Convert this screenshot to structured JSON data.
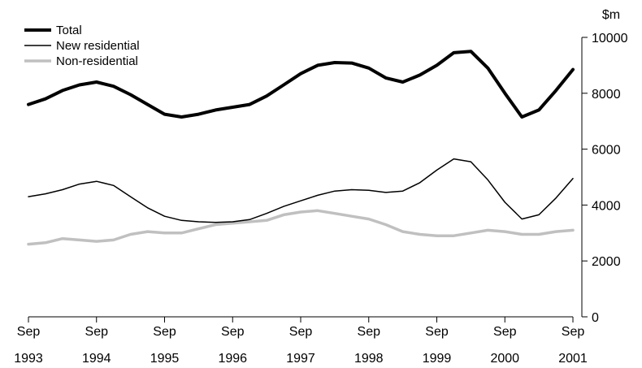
{
  "chart_data": {
    "type": "line",
    "y_unit_label": "$m",
    "ylim": [
      0,
      10000
    ],
    "y_ticks": [
      0,
      2000,
      4000,
      6000,
      8000,
      10000
    ],
    "x_tick_labels": [
      {
        "month": "Sep",
        "year": "1993"
      },
      {
        "month": "Sep",
        "year": "1994"
      },
      {
        "month": "Sep",
        "year": "1995"
      },
      {
        "month": "Sep",
        "year": "1996"
      },
      {
        "month": "Sep",
        "year": "1997"
      },
      {
        "month": "Sep",
        "year": "1998"
      },
      {
        "month": "Sep",
        "year": "1999"
      },
      {
        "month": "Sep",
        "year": "2000"
      },
      {
        "month": "Sep",
        "year": "2001"
      }
    ],
    "x": [
      "Sep 1993",
      "Dec 1993",
      "Mar 1994",
      "Jun 1994",
      "Sep 1994",
      "Dec 1994",
      "Mar 1995",
      "Jun 1995",
      "Sep 1995",
      "Dec 1995",
      "Mar 1996",
      "Jun 1996",
      "Sep 1996",
      "Dec 1996",
      "Mar 1997",
      "Jun 1997",
      "Sep 1997",
      "Dec 1997",
      "Mar 1998",
      "Jun 1998",
      "Sep 1998",
      "Dec 1998",
      "Mar 1999",
      "Jun 1999",
      "Sep 1999",
      "Dec 1999",
      "Mar 2000",
      "Jun 2000",
      "Sep 2000",
      "Dec 2000",
      "Mar 2001",
      "Jun 2001",
      "Sep 2001"
    ],
    "legend_position": "top-left",
    "grid": false,
    "series": [
      {
        "name": "Total",
        "color": "#000000",
        "values": [
          7600,
          7800,
          8100,
          8300,
          8400,
          8250,
          7950,
          7600,
          7250,
          7150,
          7250,
          7400,
          7500,
          7600,
          7900,
          8300,
          8700,
          9000,
          9100,
          9080,
          8900,
          8550,
          8400,
          8650,
          9000,
          9450,
          9500,
          8900,
          8000,
          7150,
          7400,
          8100,
          8850
        ]
      },
      {
        "name": "New residential",
        "color": "#000000",
        "values": [
          4300,
          4400,
          4550,
          4750,
          4850,
          4700,
          4300,
          3900,
          3600,
          3450,
          3400,
          3380,
          3400,
          3480,
          3700,
          3950,
          4150,
          4350,
          4500,
          4550,
          4530,
          4450,
          4500,
          4800,
          5250,
          5650,
          5550,
          4900,
          4100,
          3500,
          3650,
          4250,
          4950
        ]
      },
      {
        "name": "Non-residential",
        "color": "#c0c0c0",
        "values": [
          2600,
          2650,
          2800,
          2750,
          2700,
          2750,
          2950,
          3050,
          3000,
          3000,
          3150,
          3300,
          3350,
          3400,
          3450,
          3650,
          3750,
          3800,
          3700,
          3600,
          3500,
          3300,
          3050,
          2950,
          2900,
          2900,
          3000,
          3100,
          3050,
          2950,
          2950,
          3050,
          3100
        ]
      }
    ]
  }
}
